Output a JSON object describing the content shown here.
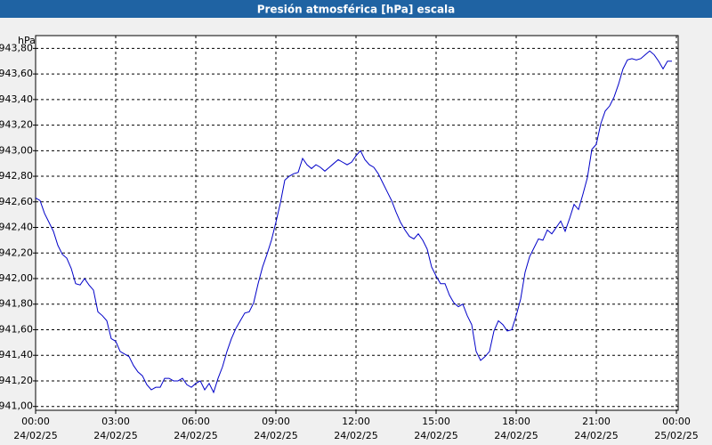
{
  "chart_data": {
    "type": "line",
    "title": "Presión atmosférica [hPa] escala",
    "y_unit": "hPa",
    "color": "#0000c8",
    "grid": true,
    "x": [
      0,
      10,
      20,
      30,
      40,
      50,
      60,
      70,
      80,
      90,
      100,
      110,
      120,
      130,
      140,
      150,
      160,
      170,
      180,
      190,
      200,
      210,
      220,
      230,
      240,
      250,
      260,
      270,
      280,
      290,
      300,
      310,
      320,
      330,
      340,
      350,
      360,
      370,
      380,
      390,
      400,
      410,
      420,
      430,
      440,
      450,
      460,
      470,
      480,
      490,
      500,
      510,
      520,
      530,
      540,
      550,
      560,
      570,
      580,
      590,
      600,
      610,
      620,
      630,
      640,
      650,
      660,
      670,
      680,
      690,
      700,
      710,
      720,
      730,
      740,
      750,
      760,
      770,
      780,
      790,
      800,
      810,
      820,
      830,
      840,
      850,
      860,
      870,
      880,
      890,
      900,
      910,
      920,
      930,
      940,
      950,
      960,
      970,
      980,
      990,
      1000,
      1010,
      1020,
      1030,
      1040,
      1050,
      1060,
      1070,
      1080,
      1090,
      1100,
      1110,
      1120,
      1130,
      1140,
      1150,
      1160,
      1170,
      1180,
      1190,
      1200,
      1210,
      1220,
      1230,
      1240,
      1250,
      1260,
      1270,
      1280,
      1290,
      1300,
      1310,
      1320,
      1330,
      1340,
      1350,
      1360,
      1370,
      1380,
      1390,
      1400,
      1410,
      1420,
      1430
    ],
    "values": [
      942.63,
      942.61,
      942.51,
      942.44,
      942.37,
      942.26,
      942.19,
      942.16,
      942.08,
      941.96,
      941.95,
      942.0,
      941.95,
      941.91,
      941.74,
      941.71,
      941.67,
      941.53,
      941.51,
      941.43,
      941.41,
      941.39,
      941.32,
      941.27,
      941.24,
      941.17,
      941.13,
      941.15,
      941.15,
      941.22,
      941.22,
      941.2,
      941.2,
      941.22,
      941.17,
      941.15,
      941.18,
      941.2,
      941.13,
      941.18,
      941.11,
      941.22,
      941.31,
      941.43,
      941.53,
      941.61,
      941.67,
      941.73,
      941.74,
      941.81,
      941.96,
      942.09,
      942.19,
      942.3,
      942.44,
      942.59,
      942.77,
      942.8,
      942.82,
      942.83,
      942.94,
      942.89,
      942.86,
      942.89,
      942.87,
      942.84,
      942.87,
      942.9,
      942.93,
      942.91,
      942.89,
      942.91,
      942.96,
      943.0,
      942.93,
      942.89,
      942.87,
      942.82,
      942.75,
      942.68,
      942.61,
      942.52,
      942.44,
      942.38,
      942.33,
      942.31,
      942.35,
      942.3,
      942.23,
      942.09,
      942.02,
      941.96,
      941.96,
      941.87,
      941.81,
      941.78,
      941.8,
      941.71,
      941.64,
      941.43,
      941.36,
      941.39,
      941.43,
      941.59,
      941.67,
      941.64,
      941.59,
      941.6,
      941.71,
      941.84,
      942.05,
      942.17,
      942.24,
      942.31,
      942.3,
      942.38,
      942.35,
      942.4,
      942.45,
      942.37,
      942.47,
      942.58,
      942.54,
      942.66,
      942.79,
      943.01,
      943.05,
      943.21,
      943.31,
      943.35,
      943.42,
      943.52,
      943.64,
      943.71,
      943.72,
      943.71,
      943.72,
      943.75,
      943.78,
      943.75,
      943.7,
      943.64,
      943.7,
      943.7
    ],
    "xlim": [
      0,
      1444
    ],
    "xticks": [
      {
        "value": 0,
        "label": "00:00",
        "date": "24/02/25"
      },
      {
        "value": 180,
        "label": "03:00",
        "date": "24/02/25"
      },
      {
        "value": 360,
        "label": "06:00",
        "date": "24/02/25"
      },
      {
        "value": 540,
        "label": "09:00",
        "date": "24/02/25"
      },
      {
        "value": 720,
        "label": "12:00",
        "date": "24/02/25"
      },
      {
        "value": 900,
        "label": "15:00",
        "date": "24/02/25"
      },
      {
        "value": 1080,
        "label": "18:00",
        "date": "24/02/25"
      },
      {
        "value": 1260,
        "label": "21:00",
        "date": "24/02/25"
      },
      {
        "value": 1440,
        "label": "00:00",
        "date": "25/02/25"
      }
    ],
    "ylim": [
      940.97,
      943.9
    ],
    "yticks": [
      {
        "value": 941.0,
        "label": "941,00"
      },
      {
        "value": 941.2,
        "label": "941,20"
      },
      {
        "value": 941.4,
        "label": "941,40"
      },
      {
        "value": 941.6,
        "label": "941,60"
      },
      {
        "value": 941.8,
        "label": "941,80"
      },
      {
        "value": 942.0,
        "label": "942,00"
      },
      {
        "value": 942.2,
        "label": "942,20"
      },
      {
        "value": 942.4,
        "label": "942,40"
      },
      {
        "value": 942.6,
        "label": "942,60"
      },
      {
        "value": 942.8,
        "label": "942,80"
      },
      {
        "value": 943.0,
        "label": "943,00"
      },
      {
        "value": 943.2,
        "label": "943,20"
      },
      {
        "value": 943.4,
        "label": "943,40"
      },
      {
        "value": 943.6,
        "label": "943,60"
      },
      {
        "value": 943.8,
        "label": "943,80"
      }
    ]
  }
}
